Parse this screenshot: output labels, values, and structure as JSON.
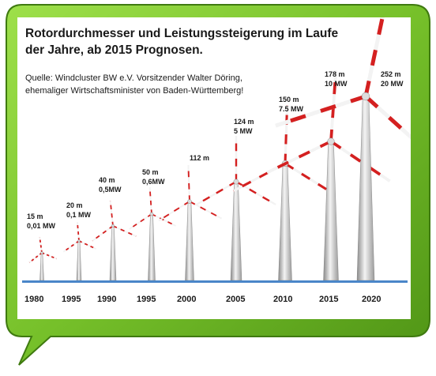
{
  "title_line1": "Rotordurchmesser und Leistungssteigerung  im Laufe",
  "title_line2": "der Jahre,  ab 2015 Prognosen.",
  "source_line1": "Quelle: Windcluster BW e.V. Vorsitzender Walter Döring,",
  "source_line2": "ehemaliger Wirtschaftsminister von Baden-Württemberg!",
  "colors": {
    "frame_green": "#6db320",
    "ground_blue": "#4a86c8",
    "blade_red": "#d42020"
  },
  "turbines": [
    {
      "year": "1980",
      "diameter": "15 m",
      "power": "0,01 MW",
      "diameter_m": 15
    },
    {
      "year": "1995",
      "diameter": "20 m",
      "power": "0,1 MW",
      "diameter_m": 20
    },
    {
      "year": "1990",
      "diameter": "40 m",
      "power": "0,5MW",
      "diameter_m": 40
    },
    {
      "year": "1995",
      "diameter": "50 m",
      "power": "0,6MW",
      "diameter_m": 50
    },
    {
      "year": "2000",
      "diameter": "112 m",
      "power": "",
      "diameter_m": 112
    },
    {
      "year": "2005",
      "diameter": "124 m",
      "power": "5 MW",
      "diameter_m": 124
    },
    {
      "year": "2010",
      "diameter": "150  m",
      "power": "7.5 MW",
      "diameter_m": 150
    },
    {
      "year": "2015",
      "diameter": "178 m",
      "power": "10 MW",
      "diameter_m": 178
    },
    {
      "year": "2020",
      "diameter": "252 m",
      "power": "20 MW",
      "diameter_m": 252
    }
  ]
}
